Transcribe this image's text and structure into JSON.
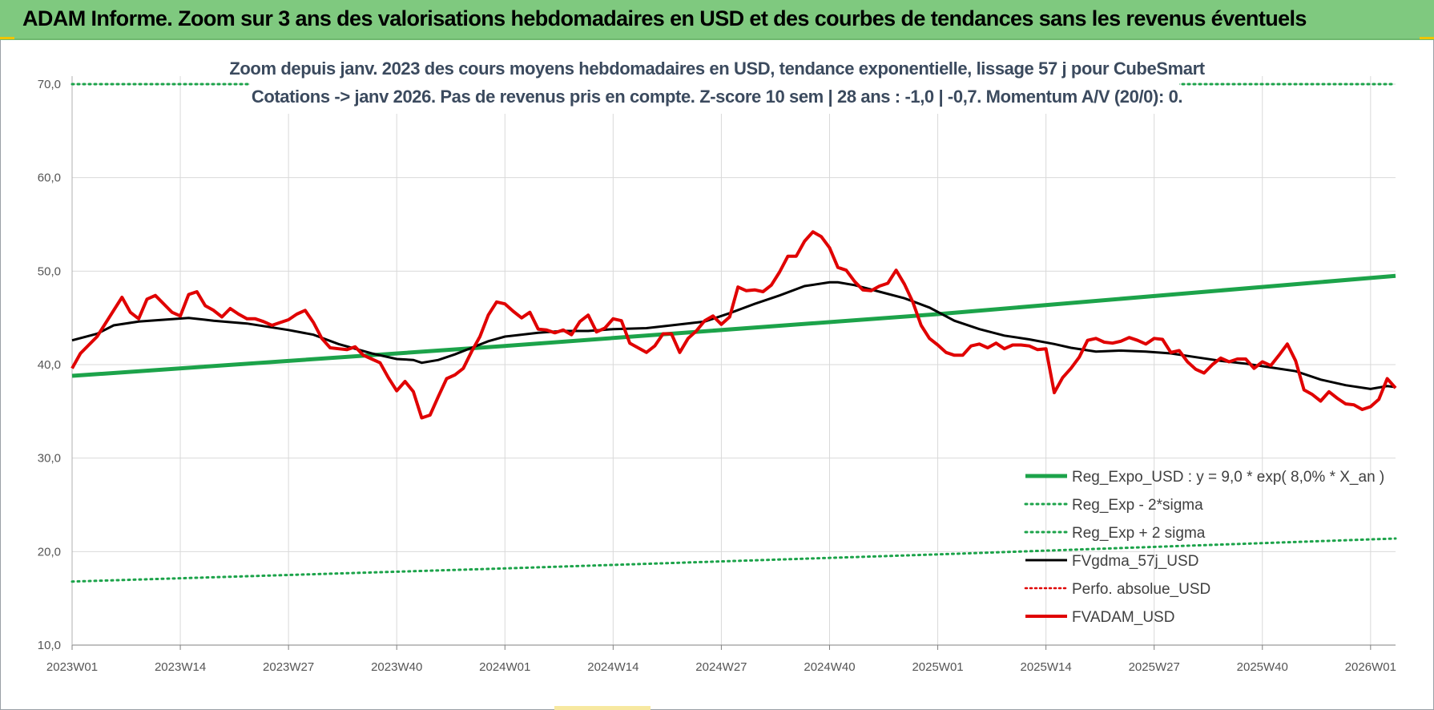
{
  "banner": {
    "title": "ADAM Informe. Zoom sur 3 ans des valorisations hebdomadaires en USD et des courbes de tendances sans les revenus éventuels"
  },
  "colors": {
    "banner": "#7fc97f",
    "trend": "#1ca34a",
    "sigma": "#1ca34a",
    "fv_gdma": "#000000",
    "perf": "#e00000",
    "fvadam": "#e00000",
    "grid": "#d9d9d9"
  },
  "chart_data": {
    "type": "line",
    "title": "Zoom depuis janv. 2023 des cours moyens hebdomadaires en USD, tendance exponentielle, lissage 57 j pour CubeSmart",
    "subtitle": "Cotations -> janv 2026. Pas de revenus pris en compte. Z-score 10 sem | 28 ans : -1,0 | -0,7. Momentum A/V (20/0): 0.",
    "xlabel": "",
    "ylabel": "",
    "ylim": [
      10,
      70
    ],
    "yticks": [
      "10,0",
      "20,0",
      "30,0",
      "40,0",
      "50,0",
      "60,0",
      "70,0"
    ],
    "x_range": [
      0,
      159
    ],
    "xticks": [
      {
        "x": 0,
        "label": "2023W01"
      },
      {
        "x": 13,
        "label": "2023W14"
      },
      {
        "x": 26,
        "label": "2023W27"
      },
      {
        "x": 39,
        "label": "2023W40"
      },
      {
        "x": 52,
        "label": "2024W01"
      },
      {
        "x": 65,
        "label": "2024W14"
      },
      {
        "x": 78,
        "label": "2024W27"
      },
      {
        "x": 91,
        "label": "2024W40"
      },
      {
        "x": 104,
        "label": "2025W01"
      },
      {
        "x": 117,
        "label": "2025W14"
      },
      {
        "x": 130,
        "label": "2025W27"
      },
      {
        "x": 143,
        "label": "2025W40"
      },
      {
        "x": 156,
        "label": "2026W01"
      }
    ],
    "grid": true,
    "legend_position": "bottom-right",
    "series": [
      {
        "name": "Reg_Expo_USD : y = 9,0 * exp( 8,0% * X_an )",
        "style": "solid-thick",
        "points": [
          [
            0,
            38.8
          ],
          [
            52,
            42.0
          ],
          [
            104,
            45.4
          ],
          [
            159,
            49.5
          ]
        ]
      },
      {
        "name": "Reg_Exp - 2*sigma",
        "style": "dotted",
        "points": [
          [
            0,
            16.8
          ],
          [
            52,
            18.2
          ],
          [
            104,
            19.7
          ],
          [
            159,
            21.4
          ]
        ]
      },
      {
        "name": "Reg_Exp + 2 sigma",
        "style": "dotted",
        "points": [
          [
            0,
            70.0
          ],
          [
            159,
            70.0
          ]
        ]
      },
      {
        "name": "FVgdma_57j_USD",
        "style": "solid",
        "points": [
          [
            0,
            42.6
          ],
          [
            3,
            43.3
          ],
          [
            5,
            44.2
          ],
          [
            8,
            44.6
          ],
          [
            11,
            44.8
          ],
          [
            14,
            45.0
          ],
          [
            17,
            44.7
          ],
          [
            21,
            44.4
          ],
          [
            26,
            43.7
          ],
          [
            29,
            43.2
          ],
          [
            32,
            42.2
          ],
          [
            36,
            41.2
          ],
          [
            39,
            40.6
          ],
          [
            41,
            40.5
          ],
          [
            42,
            40.2
          ],
          [
            44,
            40.5
          ],
          [
            46,
            41.1
          ],
          [
            48,
            41.8
          ],
          [
            50,
            42.5
          ],
          [
            52,
            43.0
          ],
          [
            56,
            43.4
          ],
          [
            59,
            43.6
          ],
          [
            62,
            43.6
          ],
          [
            65,
            43.8
          ],
          [
            69,
            43.9
          ],
          [
            72,
            44.2
          ],
          [
            76,
            44.6
          ],
          [
            79,
            45.5
          ],
          [
            82,
            46.5
          ],
          [
            85,
            47.4
          ],
          [
            88,
            48.4
          ],
          [
            91,
            48.8
          ],
          [
            92,
            48.8
          ],
          [
            94,
            48.5
          ],
          [
            97,
            47.8
          ],
          [
            100,
            47.1
          ],
          [
            103,
            46.1
          ],
          [
            106,
            44.7
          ],
          [
            109,
            43.8
          ],
          [
            112,
            43.1
          ],
          [
            115,
            42.7
          ],
          [
            118,
            42.2
          ],
          [
            120,
            41.8
          ],
          [
            123,
            41.4
          ],
          [
            126,
            41.5
          ],
          [
            129,
            41.4
          ],
          [
            132,
            41.2
          ],
          [
            135,
            40.8
          ],
          [
            138,
            40.4
          ],
          [
            141,
            40.1
          ],
          [
            144,
            39.7
          ],
          [
            147,
            39.3
          ],
          [
            150,
            38.4
          ],
          [
            153,
            37.8
          ],
          [
            156,
            37.4
          ],
          [
            158,
            37.7
          ],
          [
            159,
            37.6
          ]
        ]
      },
      {
        "name": "Perfo. absolue_USD",
        "style": "dotted-red",
        "points": []
      },
      {
        "name": "FVADAM_USD",
        "style": "solid-thick-red",
        "points": [
          [
            0,
            39.6
          ],
          [
            1,
            41.2
          ],
          [
            3,
            43.0
          ],
          [
            5,
            45.8
          ],
          [
            6,
            47.2
          ],
          [
            7,
            45.6
          ],
          [
            8,
            44.9
          ],
          [
            9,
            47.0
          ],
          [
            10,
            47.4
          ],
          [
            11,
            46.5
          ],
          [
            12,
            45.6
          ],
          [
            13,
            45.2
          ],
          [
            14,
            47.5
          ],
          [
            15,
            47.8
          ],
          [
            16,
            46.3
          ],
          [
            17,
            45.8
          ],
          [
            18,
            45.1
          ],
          [
            19,
            46.0
          ],
          [
            20,
            45.4
          ],
          [
            21,
            44.9
          ],
          [
            22,
            44.9
          ],
          [
            23,
            44.6
          ],
          [
            24,
            44.2
          ],
          [
            25,
            44.5
          ],
          [
            26,
            44.8
          ],
          [
            27,
            45.4
          ],
          [
            28,
            45.8
          ],
          [
            29,
            44.5
          ],
          [
            30,
            42.8
          ],
          [
            31,
            41.8
          ],
          [
            32,
            41.7
          ],
          [
            33,
            41.6
          ],
          [
            34,
            41.9
          ],
          [
            35,
            41.0
          ],
          [
            36,
            40.6
          ],
          [
            37,
            40.2
          ],
          [
            38,
            38.6
          ],
          [
            39,
            37.2
          ],
          [
            40,
            38.2
          ],
          [
            41,
            37.1
          ],
          [
            42,
            34.3
          ],
          [
            43,
            34.6
          ],
          [
            44,
            36.6
          ],
          [
            45,
            38.5
          ],
          [
            46,
            38.9
          ],
          [
            47,
            39.6
          ],
          [
            48,
            41.4
          ],
          [
            49,
            43.0
          ],
          [
            50,
            45.3
          ],
          [
            51,
            46.7
          ],
          [
            52,
            46.5
          ],
          [
            53,
            45.7
          ],
          [
            54,
            45.0
          ],
          [
            55,
            45.6
          ],
          [
            56,
            43.8
          ],
          [
            57,
            43.7
          ],
          [
            58,
            43.4
          ],
          [
            59,
            43.7
          ],
          [
            60,
            43.2
          ],
          [
            61,
            44.6
          ],
          [
            62,
            45.3
          ],
          [
            63,
            43.5
          ],
          [
            64,
            43.9
          ],
          [
            65,
            44.9
          ],
          [
            66,
            44.7
          ],
          [
            67,
            42.3
          ],
          [
            68,
            41.8
          ],
          [
            69,
            41.3
          ],
          [
            70,
            42.0
          ],
          [
            71,
            43.3
          ],
          [
            72,
            43.3
          ],
          [
            73,
            41.3
          ],
          [
            74,
            42.8
          ],
          [
            75,
            43.6
          ],
          [
            76,
            44.7
          ],
          [
            77,
            45.2
          ],
          [
            78,
            44.3
          ],
          [
            79,
            45.1
          ],
          [
            80,
            48.3
          ],
          [
            81,
            47.9
          ],
          [
            82,
            48.0
          ],
          [
            83,
            47.8
          ],
          [
            84,
            48.5
          ],
          [
            85,
            49.9
          ],
          [
            86,
            51.6
          ],
          [
            87,
            51.6
          ],
          [
            88,
            53.2
          ],
          [
            89,
            54.2
          ],
          [
            90,
            53.7
          ],
          [
            91,
            52.5
          ],
          [
            92,
            50.4
          ],
          [
            93,
            50.1
          ],
          [
            94,
            48.9
          ],
          [
            95,
            48.0
          ],
          [
            96,
            47.9
          ],
          [
            97,
            48.4
          ],
          [
            98,
            48.7
          ],
          [
            99,
            50.1
          ],
          [
            100,
            48.6
          ],
          [
            101,
            46.7
          ],
          [
            102,
            44.2
          ],
          [
            103,
            42.8
          ],
          [
            104,
            42.1
          ],
          [
            105,
            41.3
          ],
          [
            106,
            41.0
          ],
          [
            107,
            41.0
          ],
          [
            108,
            42.0
          ],
          [
            109,
            42.2
          ],
          [
            110,
            41.8
          ],
          [
            111,
            42.3
          ],
          [
            112,
            41.7
          ],
          [
            113,
            42.1
          ],
          [
            114,
            42.1
          ],
          [
            115,
            42.0
          ],
          [
            116,
            41.6
          ],
          [
            117,
            41.7
          ],
          [
            118,
            37.0
          ],
          [
            119,
            38.6
          ],
          [
            120,
            39.6
          ],
          [
            121,
            40.8
          ],
          [
            122,
            42.6
          ],
          [
            123,
            42.8
          ],
          [
            124,
            42.4
          ],
          [
            125,
            42.3
          ],
          [
            126,
            42.5
          ],
          [
            127,
            42.9
          ],
          [
            128,
            42.6
          ],
          [
            129,
            42.2
          ],
          [
            130,
            42.8
          ],
          [
            131,
            42.7
          ],
          [
            132,
            41.3
          ],
          [
            133,
            41.5
          ],
          [
            134,
            40.3
          ],
          [
            135,
            39.5
          ],
          [
            136,
            39.1
          ],
          [
            137,
            40.0
          ],
          [
            138,
            40.7
          ],
          [
            139,
            40.3
          ],
          [
            140,
            40.6
          ],
          [
            141,
            40.6
          ],
          [
            142,
            39.6
          ],
          [
            143,
            40.3
          ],
          [
            144,
            39.9
          ],
          [
            145,
            41.0
          ],
          [
            146,
            42.2
          ],
          [
            147,
            40.4
          ],
          [
            148,
            37.3
          ],
          [
            149,
            36.8
          ],
          [
            150,
            36.1
          ],
          [
            151,
            37.1
          ],
          [
            152,
            36.4
          ],
          [
            153,
            35.8
          ],
          [
            154,
            35.7
          ],
          [
            155,
            35.2
          ],
          [
            156,
            35.5
          ],
          [
            157,
            36.3
          ],
          [
            158,
            38.5
          ],
          [
            159,
            37.5
          ]
        ]
      }
    ]
  }
}
